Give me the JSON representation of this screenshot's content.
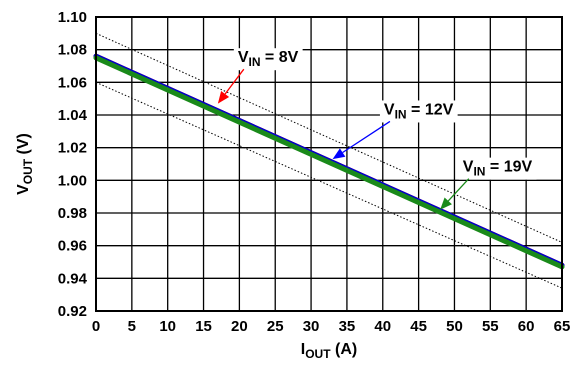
{
  "chart_data": {
    "type": "line",
    "xlabel": {
      "main": "I",
      "sub": "OUT",
      "unit": "(A)"
    },
    "ylabel": {
      "main": "V",
      "sub": "OUT",
      "unit": "(V)"
    },
    "xlim": [
      0,
      65
    ],
    "ylim": [
      0.92,
      1.1
    ],
    "x_ticks": [
      0,
      5,
      10,
      15,
      20,
      25,
      30,
      35,
      40,
      45,
      50,
      55,
      60,
      65
    ],
    "y_ticks": [
      0.92,
      0.94,
      0.96,
      0.98,
      1.0,
      1.02,
      1.04,
      1.06,
      1.08,
      1.1
    ],
    "x_tick_labels": [
      "0",
      "5",
      "10",
      "15",
      "20",
      "25",
      "30",
      "35",
      "40",
      "45",
      "50",
      "55",
      "60",
      "65"
    ],
    "y_tick_labels": [
      "0.92",
      "0.94",
      "0.96",
      "0.98",
      "1.00",
      "1.02",
      "1.04",
      "1.06",
      "1.08",
      "1.10"
    ],
    "grid": true,
    "series": [
      {
        "name": "VIN = 8V",
        "color": "#ff0000",
        "x": [
          0,
          65
        ],
        "y": [
          1.076,
          0.948
        ]
      },
      {
        "name": "VIN = 12V",
        "color": "#0000cc",
        "x": [
          0,
          65
        ],
        "y": [
          1.076,
          0.948
        ]
      },
      {
        "name": "VIN = 19V",
        "color": "#1a8a1a",
        "x": [
          0,
          65
        ],
        "y": [
          1.075,
          0.947
        ]
      }
    ],
    "limit_lines": [
      {
        "style": "dotted",
        "color": "#000000",
        "x": [
          0,
          65
        ],
        "y": [
          1.09,
          0.962
        ]
      },
      {
        "style": "dotted",
        "color": "#000000",
        "x": [
          0,
          65
        ],
        "y": [
          1.06,
          0.934
        ]
      }
    ],
    "annotations": [
      {
        "main": "V",
        "sub": "IN",
        "rest": " = 8V",
        "color": "#ff0000",
        "text_at": [
          24,
          1.076
        ],
        "arrow_to": [
          17,
          1.047
        ]
      },
      {
        "main": "V",
        "sub": "IN",
        "rest": " = 12V",
        "color": "#0000ff",
        "text_at": [
          45,
          1.044
        ],
        "arrow_to": [
          33,
          1.013
        ]
      },
      {
        "main": "V",
        "sub": "IN",
        "rest": " = 19V",
        "color": "#1a8a1a",
        "text_at": [
          56,
          1.009
        ],
        "arrow_to": [
          48,
          0.982
        ]
      }
    ]
  }
}
